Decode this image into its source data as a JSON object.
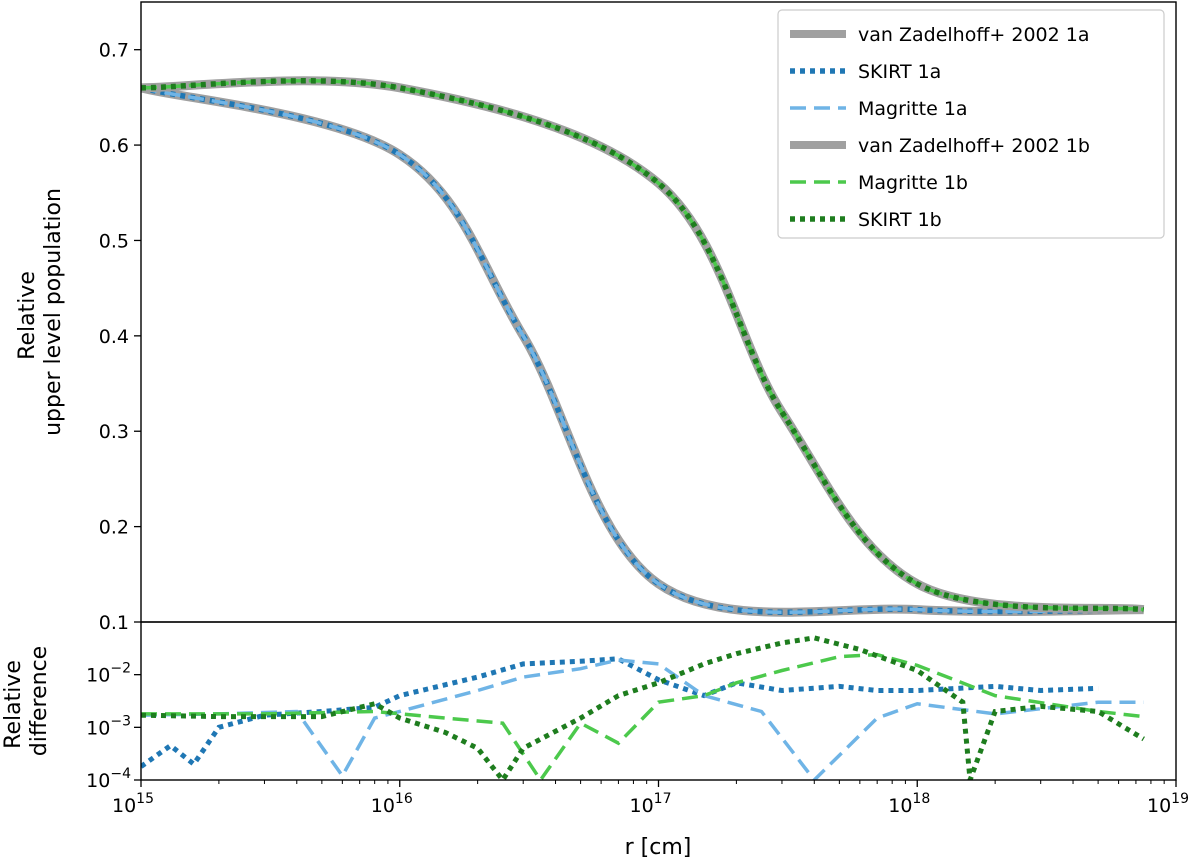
{
  "chart_data": [
    {
      "type": "line",
      "panel": "main",
      "x_scale": "log",
      "xlim": [
        1000000000000000.0,
        1e+19
      ],
      "ylim": [
        0.1,
        0.75
      ],
      "ylabel_lines": [
        "Relative",
        "upper level population"
      ],
      "xlabel": "",
      "y_ticks": [
        0.1,
        0.2,
        0.3,
        0.4,
        0.5,
        0.6,
        0.7
      ],
      "y_tick_labels": [
        "0.1",
        "0.2",
        "0.3",
        "0.4",
        "0.5",
        "0.6",
        "0.7"
      ],
      "legend_position": "top-right",
      "series": [
        {
          "name": "van Zadelhoff+ 2002 1a",
          "color": "#a0a0a0",
          "style": "solid-thick",
          "x": [
            1000000000000000.0,
            1e+16,
            3e+16,
            1e+17,
            1e+18,
            7.5e+18
          ],
          "y": [
            0.66,
            0.59,
            0.4,
            0.14,
            0.113,
            0.113
          ]
        },
        {
          "name": "SKIRT 1a",
          "color": "#1f77b4",
          "style": "dotted",
          "x": [
            1000000000000000.0,
            1e+16,
            3e+16,
            1e+17,
            1e+18,
            7.5e+18
          ],
          "y": [
            0.66,
            0.59,
            0.4,
            0.14,
            0.113,
            0.113
          ]
        },
        {
          "name": "Magritte 1a",
          "color": "#6fb4e6",
          "style": "dashed",
          "x": [
            1000000000000000.0,
            1e+16,
            3e+16,
            1e+17,
            1e+18,
            7.5e+18
          ],
          "y": [
            0.66,
            0.59,
            0.4,
            0.14,
            0.113,
            0.113
          ]
        },
        {
          "name": "van Zadelhoff+ 2002 1b",
          "color": "#a0a0a0",
          "style": "solid-thick",
          "x": [
            1000000000000000.0,
            1e+16,
            1e+17,
            3e+17,
            1e+18,
            7.5e+18
          ],
          "y": [
            0.66,
            0.66,
            0.56,
            0.32,
            0.14,
            0.113
          ]
        },
        {
          "name": "Magritte 1b",
          "color": "#4cc94c",
          "style": "dashed",
          "x": [
            1000000000000000.0,
            1e+16,
            1e+17,
            3e+17,
            1e+18,
            7.5e+18
          ],
          "y": [
            0.66,
            0.66,
            0.56,
            0.32,
            0.14,
            0.113
          ]
        },
        {
          "name": "SKIRT 1b",
          "color": "#1e7d1e",
          "style": "dotted",
          "x": [
            1000000000000000.0,
            1e+16,
            1e+17,
            3e+17,
            1e+18,
            7.5e+18
          ],
          "y": [
            0.66,
            0.66,
            0.56,
            0.32,
            0.14,
            0.113
          ]
        }
      ]
    },
    {
      "type": "line",
      "panel": "difference",
      "x_scale": "log",
      "y_scale": "log",
      "xlim": [
        1000000000000000.0,
        1e+19
      ],
      "ylim": [
        0.0001,
        0.1
      ],
      "xlabel": "r [cm]",
      "ylabel_lines": [
        "Relative",
        "difference"
      ],
      "x_ticks": [
        1000000000000000.0,
        1e+16,
        1e+17,
        1e+18,
        1e+19
      ],
      "x_tick_labels": [
        {
          "base": "10",
          "exp": "15"
        },
        {
          "base": "10",
          "exp": "16"
        },
        {
          "base": "10",
          "exp": "17"
        },
        {
          "base": "10",
          "exp": "18"
        },
        {
          "base": "10",
          "exp": "19"
        }
      ],
      "y_ticks": [
        0.0001,
        0.001,
        0.01
      ],
      "y_tick_labels": [
        {
          "base": "10",
          "exp": "−4"
        },
        {
          "base": "10",
          "exp": "−3"
        },
        {
          "base": "10",
          "exp": "−2"
        }
      ],
      "series": [
        {
          "name": "SKIRT 1a",
          "color": "#1f77b4",
          "style": "dotted",
          "x": [
            1000000000000000.0,
            1300000000000000.0,
            1600000000000000.0,
            2000000000000000.0,
            3000000000000000.0,
            5000000000000000.0,
            8000000000000000.0,
            1e+16,
            2e+16,
            3e+16,
            5e+16,
            7e+16,
            1e+17,
            1.5e+17,
            2e+17,
            3e+17,
            5e+17,
            7e+17,
            1e+18,
            2e+18,
            3e+18,
            5e+18
          ],
          "y": [
            0.00018,
            0.00045,
            0.0002,
            0.001,
            0.0017,
            0.002,
            0.0024,
            0.004,
            0.009,
            0.016,
            0.018,
            0.02,
            0.008,
            0.004,
            0.007,
            0.005,
            0.006,
            0.005,
            0.005,
            0.006,
            0.005,
            0.0055
          ]
        },
        {
          "name": "Magritte 1a",
          "color": "#6fb4e6",
          "style": "dashed",
          "x": [
            1000000000000000.0,
            2000000000000000.0,
            4000000000000000.0,
            6000000000000000.0,
            8000000000000000.0,
            1e+16,
            2e+16,
            3e+16,
            5e+16,
            7e+16,
            1e+17,
            1.5e+17,
            2.5e+17,
            4e+17,
            7e+17,
            1e+18,
            2e+18,
            5e+18,
            7.5e+18
          ],
          "y": [
            0.0017,
            0.0018,
            0.002,
            0.00012,
            0.0015,
            0.002,
            0.005,
            0.009,
            0.013,
            0.019,
            0.016,
            0.004,
            0.002,
            0.0001,
            0.0015,
            0.0028,
            0.0018,
            0.003,
            0.003
          ]
        },
        {
          "name": "Magritte 1b",
          "color": "#4cc94c",
          "style": "dashed",
          "x": [
            1000000000000000.0,
            3000000000000000.0,
            8000000000000000.0,
            1.5e+16,
            2.5e+16,
            3.5e+16,
            5e+16,
            7e+16,
            1e+17,
            1.5e+17,
            2e+17,
            3e+17,
            5e+17,
            7e+17,
            1e+18,
            2e+18,
            5e+18,
            7.5e+18
          ],
          "y": [
            0.0018,
            0.0018,
            0.002,
            0.0015,
            0.0012,
            0.0001,
            0.0012,
            0.0005,
            0.003,
            0.004,
            0.007,
            0.012,
            0.022,
            0.024,
            0.015,
            0.004,
            0.002,
            0.0016
          ]
        },
        {
          "name": "SKIRT 1b",
          "color": "#1e7d1e",
          "style": "dotted",
          "x": [
            1000000000000000.0,
            2000000000000000.0,
            5000000000000000.0,
            8000000000000000.0,
            1e+16,
            1.5e+16,
            2e+16,
            2.5e+16,
            3e+16,
            5e+16,
            7e+16,
            1e+17,
            1.5e+17,
            2e+17,
            3e+17,
            4e+17,
            6e+17,
            1e+18,
            1.5e+18,
            1.6e+18,
            2e+18,
            3e+18,
            5e+18,
            7.5e+18
          ],
          "y": [
            0.0017,
            0.0016,
            0.0016,
            0.0028,
            0.0015,
            0.0008,
            0.0004,
            0.0001,
            0.0004,
            0.0015,
            0.004,
            0.007,
            0.016,
            0.025,
            0.04,
            0.05,
            0.03,
            0.012,
            0.003,
            0.0001,
            0.002,
            0.0025,
            0.002,
            0.0006
          ]
        }
      ]
    }
  ]
}
